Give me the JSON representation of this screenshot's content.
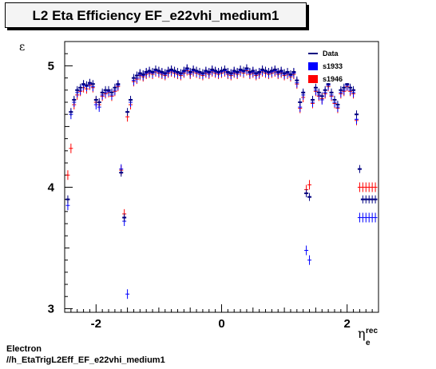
{
  "header": {
    "title": "L2 Eta Efficiency EF_e22vhi_medium1"
  },
  "footer": {
    "line1": "Electron",
    "line2": "//h_EtaTrigL2Eff_EF_e22vhi_medium1"
  },
  "colors": {
    "data": "#000080",
    "s1933": "#0000ff",
    "s1946": "#ff0000",
    "frame": "#000000"
  },
  "chart_data": {
    "type": "scatter",
    "title": "L2 Eta Efficiency EF_e22vhi_medium1",
    "xlabel": "η_e^rec",
    "ylabel": "ε",
    "xlim": [
      -2.5,
      2.5
    ],
    "ylim": [
      2.97,
      5.2
    ],
    "xticks": [
      -2,
      0,
      2
    ],
    "yticks": [
      3,
      4,
      5
    ],
    "grid": false,
    "legend_position": "top-right",
    "x": [
      -2.45,
      -2.4,
      -2.35,
      -2.3,
      -2.25,
      -2.2,
      -2.15,
      -2.1,
      -2.05,
      -2.0,
      -1.95,
      -1.9,
      -1.85,
      -1.8,
      -1.75,
      -1.7,
      -1.65,
      -1.6,
      -1.55,
      -1.5,
      -1.45,
      -1.4,
      -1.35,
      -1.3,
      -1.25,
      -1.2,
      -1.15,
      -1.1,
      -1.05,
      -1.0,
      -0.95,
      -0.9,
      -0.85,
      -0.8,
      -0.75,
      -0.7,
      -0.65,
      -0.6,
      -0.55,
      -0.5,
      -0.45,
      -0.4,
      -0.35,
      -0.3,
      -0.25,
      -0.2,
      -0.15,
      -0.1,
      -0.05,
      0.0,
      0.05,
      0.1,
      0.15,
      0.2,
      0.25,
      0.3,
      0.35,
      0.4,
      0.45,
      0.5,
      0.55,
      0.6,
      0.65,
      0.7,
      0.75,
      0.8,
      0.85,
      0.9,
      0.95,
      1.0,
      1.05,
      1.1,
      1.15,
      1.2,
      1.25,
      1.3,
      1.35,
      1.4,
      1.45,
      1.5,
      1.55,
      1.6,
      1.65,
      1.7,
      1.75,
      1.8,
      1.85,
      1.9,
      1.95,
      2.0,
      2.05,
      2.1,
      2.15,
      2.2,
      2.25,
      2.3,
      2.35,
      2.4,
      2.45
    ],
    "series": [
      {
        "name": "Data",
        "values": [
          3.9,
          4.62,
          4.72,
          4.8,
          4.82,
          4.85,
          4.84,
          4.86,
          4.85,
          4.72,
          4.7,
          4.78,
          4.8,
          4.8,
          4.78,
          4.82,
          4.85,
          4.12,
          3.75,
          4.62,
          4.72,
          4.9,
          4.92,
          4.94,
          4.93,
          4.95,
          4.96,
          4.95,
          4.97,
          4.96,
          4.95,
          4.94,
          4.96,
          4.97,
          4.96,
          4.95,
          4.94,
          4.96,
          4.98,
          4.95,
          4.97,
          4.96,
          4.95,
          4.94,
          4.96,
          4.95,
          4.97,
          4.96,
          4.95,
          4.96,
          4.97,
          4.95,
          4.94,
          4.96,
          4.95,
          4.97,
          4.96,
          4.98,
          4.95,
          4.96,
          4.94,
          4.95,
          4.97,
          4.96,
          4.95,
          4.96,
          4.97,
          4.95,
          4.96,
          4.94,
          4.95,
          4.93,
          4.95,
          4.88,
          4.7,
          4.78,
          3.95,
          3.92,
          4.72,
          4.82,
          4.78,
          4.75,
          4.8,
          4.85,
          4.78,
          4.72,
          4.68,
          4.8,
          4.82,
          4.85,
          4.82,
          4.8,
          4.6,
          4.15,
          3.9,
          3.9,
          3.9,
          3.9,
          3.9
        ]
      },
      {
        "name": "s1933",
        "values": [
          3.85,
          4.6,
          4.7,
          4.78,
          4.8,
          4.84,
          4.83,
          4.85,
          4.83,
          4.68,
          4.66,
          4.76,
          4.78,
          4.79,
          4.76,
          4.8,
          4.84,
          4.15,
          3.72,
          3.12,
          4.7,
          4.88,
          4.9,
          4.93,
          4.92,
          4.94,
          4.95,
          4.94,
          4.96,
          4.95,
          4.94,
          4.93,
          4.95,
          4.96,
          4.95,
          4.94,
          4.93,
          4.95,
          4.97,
          4.94,
          4.96,
          4.95,
          4.94,
          4.93,
          4.95,
          4.94,
          4.96,
          4.95,
          4.94,
          4.95,
          4.96,
          4.94,
          4.93,
          4.95,
          4.94,
          4.96,
          4.95,
          4.97,
          4.94,
          4.95,
          4.93,
          4.94,
          4.96,
          4.95,
          4.94,
          4.95,
          4.96,
          4.94,
          4.95,
          4.93,
          4.94,
          4.92,
          4.94,
          4.86,
          4.66,
          4.76,
          3.48,
          3.4,
          4.7,
          4.8,
          4.76,
          4.72,
          4.78,
          4.84,
          4.76,
          4.7,
          4.66,
          4.78,
          4.8,
          4.84,
          4.8,
          4.78,
          4.56,
          3.75,
          3.75,
          3.75,
          3.75,
          3.75,
          3.75
        ]
      },
      {
        "name": "s1946",
        "values": [
          4.1,
          4.32,
          4.68,
          4.76,
          4.79,
          4.82,
          4.81,
          4.84,
          4.82,
          4.7,
          4.68,
          4.75,
          4.77,
          4.78,
          4.75,
          4.79,
          4.83,
          4.14,
          3.78,
          4.58,
          4.68,
          4.87,
          4.89,
          4.92,
          4.91,
          4.93,
          4.94,
          4.93,
          4.95,
          4.94,
          4.93,
          4.92,
          4.94,
          4.95,
          4.94,
          4.93,
          4.92,
          4.94,
          4.96,
          4.93,
          4.95,
          4.94,
          4.93,
          4.92,
          4.94,
          4.93,
          4.95,
          4.94,
          4.93,
          4.94,
          4.95,
          4.93,
          4.92,
          4.94,
          4.93,
          4.95,
          4.94,
          4.96,
          4.93,
          4.94,
          4.92,
          4.93,
          4.95,
          4.94,
          4.93,
          4.94,
          4.95,
          4.93,
          4.94,
          4.92,
          4.93,
          4.91,
          4.93,
          4.85,
          4.65,
          4.74,
          3.98,
          4.02,
          4.69,
          4.79,
          4.75,
          4.73,
          4.77,
          4.83,
          4.75,
          4.69,
          4.65,
          4.77,
          4.79,
          4.83,
          4.79,
          4.77,
          4.55,
          4.0,
          4.0,
          4.0,
          4.0,
          4.0,
          4.0
        ]
      }
    ]
  }
}
